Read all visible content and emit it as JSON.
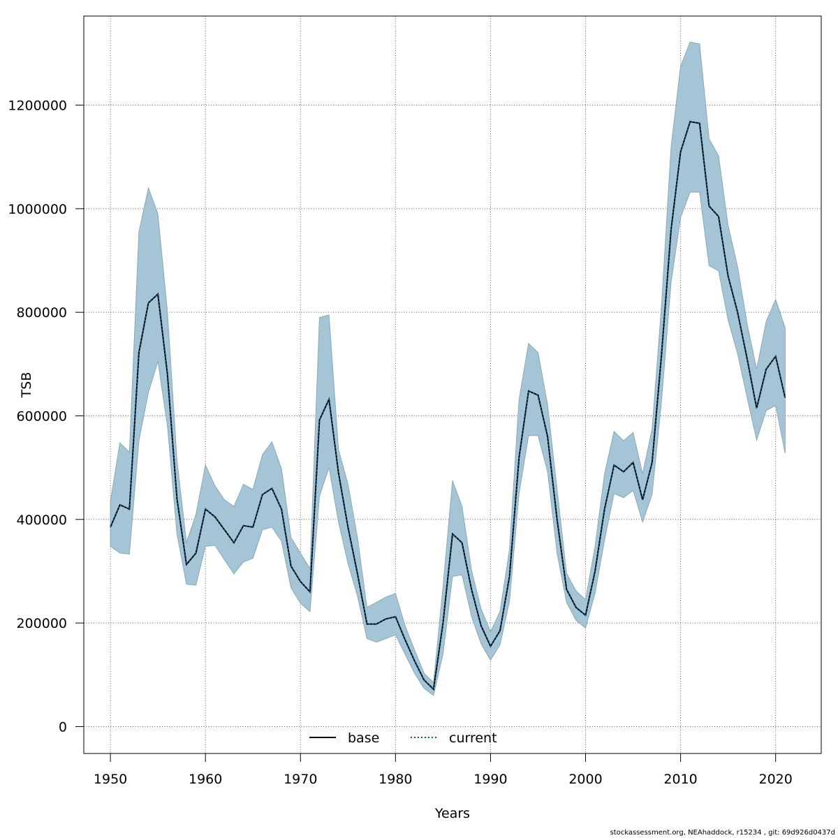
{
  "chart_data": {
    "type": "area",
    "xlabel": "Years",
    "ylabel": "TSB",
    "xlim": [
      1947.2,
      2024.8
    ],
    "ylim": [
      -52000,
      1372000
    ],
    "x_ticks": [
      1950,
      1960,
      1970,
      1980,
      1990,
      2000,
      2010,
      2020
    ],
    "y_ticks": [
      0,
      200000,
      400000,
      600000,
      800000,
      1000000,
      1200000
    ],
    "grid": true,
    "legend_position": "bottom-center",
    "legend": [
      {
        "name": "base",
        "style": "solid",
        "color": "#000000"
      },
      {
        "name": "current",
        "style": "dotted",
        "color": "#0a5a8a"
      }
    ],
    "band_color": "#a5c5d6",
    "x": [
      1950,
      1951,
      1952,
      1953,
      1954,
      1955,
      1956,
      1957,
      1958,
      1959,
      1960,
      1961,
      1962,
      1963,
      1964,
      1965,
      1966,
      1967,
      1968,
      1969,
      1970,
      1971,
      1972,
      1973,
      1974,
      1975,
      1976,
      1977,
      1978,
      1979,
      1980,
      1981,
      1982,
      1983,
      1984,
      1985,
      1986,
      1987,
      1988,
      1989,
      1990,
      1991,
      1992,
      1993,
      1994,
      1995,
      1996,
      1997,
      1998,
      1999,
      2000,
      2001,
      2002,
      2003,
      2004,
      2005,
      2006,
      2007,
      2008,
      2009,
      2010,
      2011,
      2012,
      2013,
      2014,
      2015,
      2016,
      2017,
      2018,
      2019,
      2020,
      2021
    ],
    "series": [
      {
        "name": "base",
        "values": [
          385000,
          428000,
          420000,
          722000,
          818000,
          835000,
          680000,
          440000,
          313000,
          335000,
          420000,
          405000,
          380000,
          355000,
          388000,
          385000,
          448000,
          460000,
          420000,
          310000,
          280000,
          260000,
          592000,
          632000,
          490000,
          385000,
          295000,
          198000,
          198000,
          208000,
          212000,
          168000,
          127000,
          90000,
          72000,
          200000,
          372000,
          355000,
          265000,
          195000,
          155000,
          185000,
          290000,
          520000,
          648000,
          640000,
          560000,
          400000,
          265000,
          230000,
          215000,
          300000,
          420000,
          505000,
          492000,
          510000,
          438000,
          510000,
          720000,
          960000,
          1110000,
          1168000,
          1165000,
          1005000,
          985000,
          870000,
          800000,
          710000,
          615000,
          690000,
          715000,
          635000
        ]
      },
      {
        "name": "current",
        "values": [
          385000,
          428000,
          420000,
          722000,
          818000,
          835000,
          680000,
          440000,
          313000,
          335000,
          420000,
          405000,
          380000,
          355000,
          388000,
          385000,
          448000,
          460000,
          420000,
          310000,
          280000,
          260000,
          592000,
          632000,
          490000,
          385000,
          295000,
          198000,
          198000,
          208000,
          212000,
          168000,
          127000,
          90000,
          72000,
          200000,
          372000,
          355000,
          265000,
          195000,
          155000,
          185000,
          290000,
          520000,
          648000,
          640000,
          560000,
          400000,
          265000,
          230000,
          215000,
          300000,
          420000,
          505000,
          492000,
          510000,
          438000,
          510000,
          720000,
          960000,
          1110000,
          1168000,
          1165000,
          1005000,
          985000,
          870000,
          800000,
          710000,
          615000,
          690000,
          715000,
          635000
        ]
      }
    ],
    "band_lower": [
      348000,
      335000,
      333000,
      552000,
      645000,
      705000,
      580000,
      372000,
      275000,
      273000,
      348000,
      350000,
      322000,
      295000,
      318000,
      325000,
      380000,
      385000,
      358000,
      268000,
      238000,
      222000,
      445000,
      500000,
      395000,
      315000,
      252000,
      170000,
      163000,
      170000,
      177000,
      140000,
      103000,
      74000,
      60000,
      140000,
      290000,
      293000,
      213000,
      160000,
      128000,
      158000,
      242000,
      450000,
      562000,
      562000,
      492000,
      335000,
      240000,
      205000,
      190000,
      258000,
      360000,
      450000,
      442000,
      456000,
      395000,
      448000,
      630000,
      858000,
      983000,
      1032000,
      1032000,
      890000,
      880000,
      785000,
      720000,
      635000,
      553000,
      610000,
      620000,
      528000
    ],
    "band_upper": [
      435000,
      548000,
      530000,
      955000,
      1040000,
      990000,
      800000,
      515000,
      355000,
      410000,
      505000,
      465000,
      438000,
      425000,
      468000,
      458000,
      525000,
      550000,
      498000,
      365000,
      335000,
      305000,
      790000,
      795000,
      535000,
      468000,
      365000,
      230000,
      240000,
      250000,
      257000,
      195000,
      148000,
      103000,
      85000,
      270000,
      475000,
      425000,
      302000,
      228000,
      183000,
      222000,
      342000,
      632000,
      740000,
      722000,
      622000,
      458000,
      296000,
      262000,
      245000,
      348000,
      488000,
      570000,
      552000,
      568000,
      488000,
      575000,
      815000,
      1120000,
      1275000,
      1322000,
      1318000,
      1135000,
      1102000,
      968000,
      888000,
      778000,
      690000,
      782000,
      825000,
      770000
    ]
  },
  "footer": {
    "note": "stockassessment.org, NEAhaddock, r15234 , git: 69d926d0437d"
  }
}
